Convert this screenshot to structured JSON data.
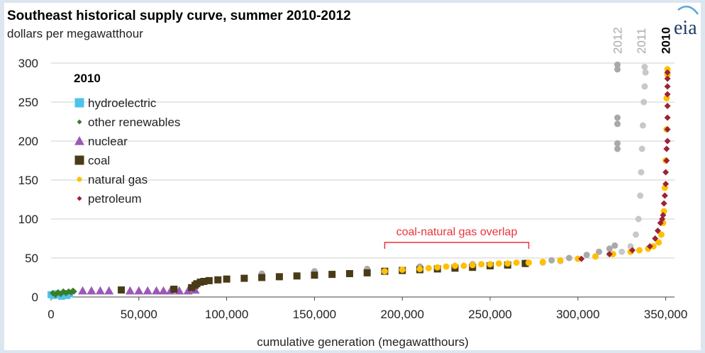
{
  "chart_data": {
    "type": "scatter",
    "title": "Southeast historical supply curve, summer 2010-2012",
    "subtitle": "dollars per megawatthour",
    "xlabel": "cumulative generation (megawatthours)",
    "ylabel": "",
    "xlim": [
      0,
      355000
    ],
    "ylim": [
      0,
      300
    ],
    "x_ticks": [
      {
        "value": 0,
        "label": "0"
      },
      {
        "value": 50000,
        "label": "50,000"
      },
      {
        "value": 100000,
        "label": "100,000"
      },
      {
        "value": 150000,
        "label": "150,000"
      },
      {
        "value": 200000,
        "label": "200,000"
      },
      {
        "value": 250000,
        "label": "250,000"
      },
      {
        "value": 300000,
        "label": "300,000"
      },
      {
        "value": 350000,
        "label": "350,000"
      }
    ],
    "y_ticks": [
      {
        "value": 0,
        "label": "0"
      },
      {
        "value": 50,
        "label": "50"
      },
      {
        "value": 100,
        "label": "100"
      },
      {
        "value": 150,
        "label": "150"
      },
      {
        "value": 200,
        "label": "200"
      },
      {
        "value": 250,
        "label": "250"
      },
      {
        "value": 300,
        "label": "300"
      }
    ],
    "grid": "horizontal",
    "legend": {
      "title": "2010",
      "placement": "top-left",
      "items": [
        {
          "name": "hydroelectric",
          "color": "#4ec3ea",
          "marker": "square"
        },
        {
          "name": "other renewables",
          "color": "#3a7d2a",
          "marker": "diamond"
        },
        {
          "name": "nuclear",
          "color": "#9b59b6",
          "marker": "triangle"
        },
        {
          "name": "coal",
          "color": "#4a3b18",
          "marker": "square"
        },
        {
          "name": "natural gas",
          "color": "#ffc000",
          "marker": "circle"
        },
        {
          "name": "petroleum",
          "color": "#9b2335",
          "marker": "diamond"
        }
      ]
    },
    "year_labels": [
      {
        "text": "2012",
        "x": 322500,
        "color": "#a9a9a9",
        "bold": false
      },
      {
        "text": "2011",
        "x": 336000,
        "color": "#a9a9a9",
        "bold": false
      },
      {
        "text": "2010",
        "x": 350000,
        "color": "#000000",
        "bold": true
      }
    ],
    "annotation": {
      "text": "coal-natural gas overlap",
      "x_start": 190000,
      "x_end": 272000,
      "y": 70
    },
    "series": [
      {
        "name": "2012",
        "color": "#a9a9a9",
        "marker": "circle",
        "points": [
          [
            120000,
            30
          ],
          [
            150000,
            33
          ],
          [
            180000,
            36
          ],
          [
            210000,
            39
          ],
          [
            240000,
            42
          ],
          [
            270000,
            44
          ],
          [
            285000,
            47
          ],
          [
            295000,
            50
          ],
          [
            305000,
            54
          ],
          [
            312000,
            58
          ],
          [
            318000,
            62
          ],
          [
            321000,
            66
          ],
          [
            322500,
            190
          ],
          [
            322500,
            197
          ],
          [
            322500,
            222
          ],
          [
            322500,
            230
          ],
          [
            322500,
            292
          ],
          [
            322500,
            298
          ]
        ]
      },
      {
        "name": "2011",
        "color": "#c8c8c8",
        "marker": "circle",
        "points": [
          [
            270000,
            42
          ],
          [
            280000,
            44
          ],
          [
            290000,
            46
          ],
          [
            300000,
            49
          ],
          [
            310000,
            52
          ],
          [
            318000,
            55
          ],
          [
            325000,
            58
          ],
          [
            330000,
            65
          ],
          [
            333000,
            80
          ],
          [
            334500,
            100
          ],
          [
            335500,
            130
          ],
          [
            336000,
            160
          ],
          [
            336500,
            190
          ],
          [
            337000,
            220
          ],
          [
            337500,
            250
          ],
          [
            338000,
            270
          ],
          [
            338500,
            288
          ],
          [
            338000,
            295
          ]
        ]
      },
      {
        "name": "hydroelectric",
        "color": "#4ec3ea",
        "marker": "square",
        "points": [
          [
            0,
            3
          ],
          [
            1500,
            2
          ],
          [
            3000,
            4
          ],
          [
            4500,
            3
          ],
          [
            6000,
            1
          ],
          [
            7500,
            3
          ],
          [
            9000,
            2
          ],
          [
            10500,
            4
          ]
        ]
      },
      {
        "name": "other renewables",
        "color": "#3a7d2a",
        "marker": "diamond",
        "points": [
          [
            1000,
            5
          ],
          [
            2500,
            3
          ],
          [
            4000,
            6
          ],
          [
            5500,
            4
          ],
          [
            7000,
            7
          ],
          [
            8500,
            5
          ],
          [
            10000,
            7
          ],
          [
            11500,
            6
          ],
          [
            12500,
            8
          ],
          [
            13000,
            7
          ]
        ]
      },
      {
        "name": "nuclear",
        "color": "#9b59b6",
        "marker": "triangle",
        "points": [
          [
            18000,
            8
          ],
          [
            23000,
            8
          ],
          [
            28000,
            8
          ],
          [
            33000,
            8
          ],
          [
            45000,
            8
          ],
          [
            50000,
            8
          ],
          [
            55000,
            8
          ],
          [
            60000,
            8
          ],
          [
            64000,
            8
          ],
          [
            68000,
            8
          ],
          [
            73000,
            8
          ],
          [
            78000,
            8
          ],
          [
            82000,
            9
          ]
        ]
      },
      {
        "name": "coal",
        "color": "#4a3b18",
        "marker": "square",
        "points": [
          [
            40000,
            9
          ],
          [
            70000,
            10
          ],
          [
            80000,
            12
          ],
          [
            82000,
            15
          ],
          [
            83000,
            17
          ],
          [
            85000,
            19
          ],
          [
            87000,
            20
          ],
          [
            90000,
            21
          ],
          [
            95000,
            22
          ],
          [
            100000,
            23
          ],
          [
            110000,
            24
          ],
          [
            120000,
            25
          ],
          [
            130000,
            26
          ],
          [
            140000,
            27
          ],
          [
            150000,
            28
          ],
          [
            160000,
            29
          ],
          [
            170000,
            30
          ],
          [
            180000,
            31
          ],
          [
            190000,
            33
          ],
          [
            200000,
            34
          ],
          [
            210000,
            35
          ],
          [
            220000,
            36
          ],
          [
            230000,
            37
          ],
          [
            240000,
            38
          ],
          [
            250000,
            40
          ],
          [
            260000,
            41
          ],
          [
            270000,
            43
          ]
        ]
      },
      {
        "name": "natural gas",
        "color": "#ffc000",
        "marker": "circle",
        "points": [
          [
            190000,
            33
          ],
          [
            200000,
            35
          ],
          [
            210000,
            36
          ],
          [
            215000,
            37
          ],
          [
            220000,
            38
          ],
          [
            225000,
            39
          ],
          [
            230000,
            40
          ],
          [
            235000,
            40
          ],
          [
            240000,
            41
          ],
          [
            245000,
            42
          ],
          [
            250000,
            42
          ],
          [
            255000,
            43
          ],
          [
            260000,
            43
          ],
          [
            265000,
            44
          ],
          [
            272000,
            44
          ],
          [
            280000,
            45
          ],
          [
            290000,
            47
          ],
          [
            300000,
            49
          ],
          [
            310000,
            52
          ],
          [
            320000,
            55
          ],
          [
            330000,
            58
          ],
          [
            335000,
            60
          ],
          [
            340000,
            62
          ],
          [
            343000,
            65
          ],
          [
            346000,
            70
          ],
          [
            347500,
            80
          ],
          [
            348500,
            95
          ],
          [
            349000,
            110
          ],
          [
            349500,
            140
          ],
          [
            350000,
            175
          ],
          [
            350500,
            215
          ],
          [
            350500,
            255
          ],
          [
            351000,
            285
          ],
          [
            351000,
            292
          ]
        ]
      },
      {
        "name": "petroleum",
        "color": "#9b2335",
        "marker": "diamond",
        "points": [
          [
            302000,
            49
          ],
          [
            318000,
            55
          ],
          [
            331000,
            60
          ],
          [
            341000,
            65
          ],
          [
            344000,
            75
          ],
          [
            345500,
            85
          ],
          [
            347000,
            95
          ],
          [
            348000,
            100
          ],
          [
            348500,
            105
          ],
          [
            349000,
            120
          ],
          [
            349500,
            130
          ],
          [
            350000,
            145
          ],
          [
            350000,
            160
          ],
          [
            350500,
            175
          ],
          [
            350500,
            190
          ],
          [
            351000,
            200
          ],
          [
            351000,
            215
          ],
          [
            351000,
            230
          ],
          [
            351000,
            245
          ],
          [
            351000,
            260
          ],
          [
            351000,
            270
          ],
          [
            351000,
            280
          ],
          [
            351000,
            288
          ]
        ]
      }
    ]
  },
  "logo": {
    "text": "eia",
    "name": "eia-logo"
  }
}
